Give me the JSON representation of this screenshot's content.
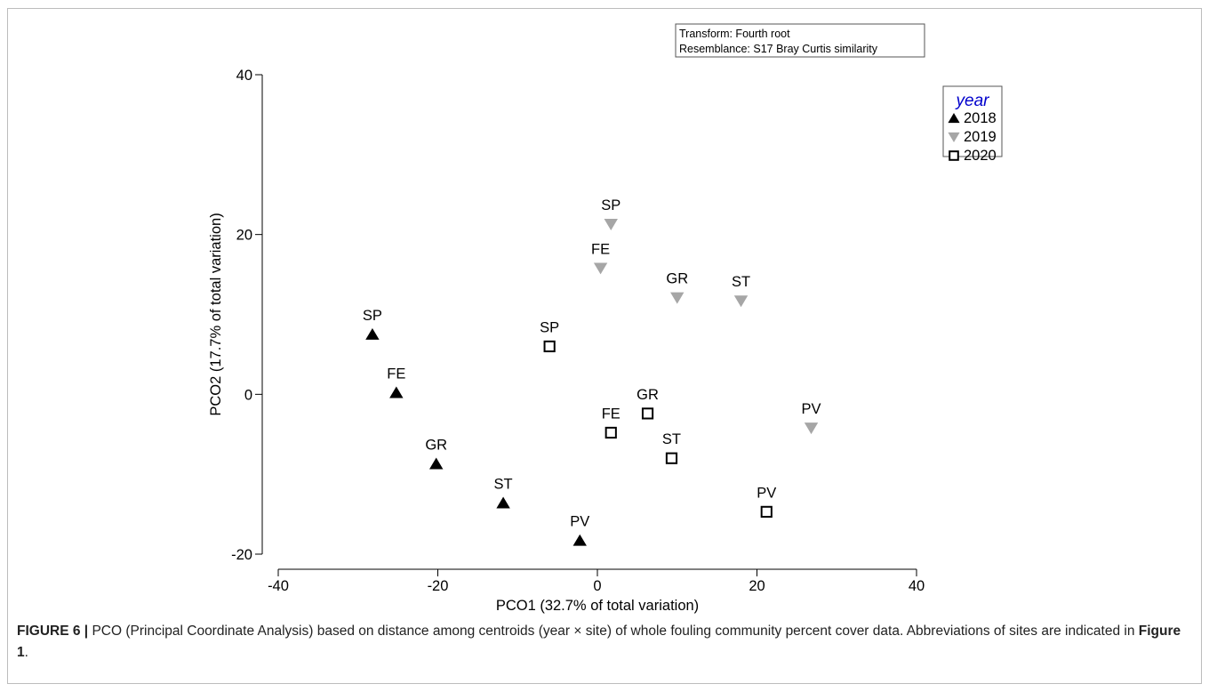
{
  "chart_data": {
    "type": "scatter",
    "xlabel": "PCO1 (32.7% of total variation)",
    "ylabel": "PCO2 (17.7% of total variation)",
    "xlim": [
      -40,
      40
    ],
    "ylim": [
      -20,
      40
    ],
    "xticks": [
      -40,
      -20,
      0,
      20,
      40
    ],
    "yticks": [
      -20,
      0,
      20,
      40
    ],
    "grid": false,
    "legend": {
      "title": "year",
      "placement": "top-right",
      "title_color": "#0000cc",
      "entries": [
        "2018",
        "2019",
        "2020"
      ]
    },
    "annotation": [
      "Transform: Fourth root",
      "Resemblance: S17 Bray Curtis similarity"
    ],
    "series": [
      {
        "name": "2018",
        "marker": "triangle-up",
        "color": "#000000",
        "points": [
          {
            "label": "SP",
            "x": -28.2,
            "y": 7.5
          },
          {
            "label": "FE",
            "x": -25.2,
            "y": 0.2
          },
          {
            "label": "GR",
            "x": -20.2,
            "y": -8.7
          },
          {
            "label": "ST",
            "x": -11.8,
            "y": -13.6
          },
          {
            "label": "PV",
            "x": -2.2,
            "y": -18.3
          }
        ]
      },
      {
        "name": "2019",
        "marker": "triangle-down",
        "color": "#a6a6a6",
        "points": [
          {
            "label": "SP",
            "x": 1.7,
            "y": 21.3
          },
          {
            "label": "FE",
            "x": 0.4,
            "y": 15.8
          },
          {
            "label": "GR",
            "x": 10.0,
            "y": 12.1
          },
          {
            "label": "ST",
            "x": 18.0,
            "y": 11.7
          },
          {
            "label": "PV",
            "x": 26.8,
            "y": -4.2
          }
        ]
      },
      {
        "name": "2020",
        "marker": "square-open",
        "color": "#000000",
        "points": [
          {
            "label": "SP",
            "x": -6.0,
            "y": 6.0
          },
          {
            "label": "FE",
            "x": 1.7,
            "y": -4.8
          },
          {
            "label": "GR",
            "x": 6.3,
            "y": -2.4
          },
          {
            "label": "ST",
            "x": 9.3,
            "y": -8.0
          },
          {
            "label": "PV",
            "x": 21.2,
            "y": -14.7
          }
        ]
      }
    ]
  },
  "caption": {
    "figure_label": "FIGURE 6 |",
    "text_1": " PCO (Principal Coordinate Analysis) based on distance among centroids (year × site) of whole fouling community percent cover data. Abbreviations of sites are indicated in ",
    "figure_ref": "Figure 1",
    "text_2": "."
  }
}
